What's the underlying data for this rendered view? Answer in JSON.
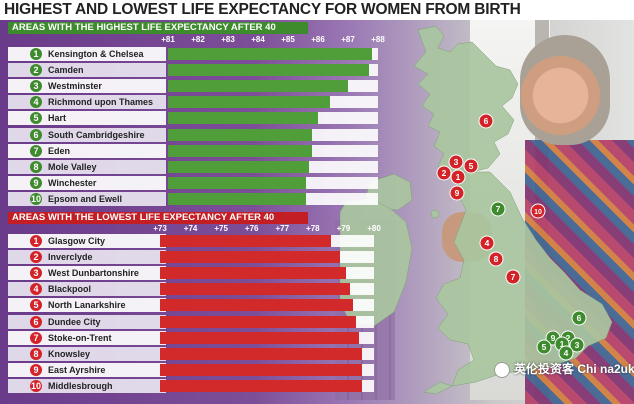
{
  "title": "HIGHEST AND LOWEST LIFE EXPECTANCY FOR WOMEN FROM BIRTH",
  "colors": {
    "green": "#3d8b2d",
    "red": "#d32328"
  },
  "watermark": "英伦投资客 Chi na2uk",
  "chart_data": [
    {
      "type": "bar",
      "orientation": "horizontal",
      "title": "AREAS WITH THE HIGHEST LIFE EXPECTANCY AFTER 40",
      "tick_labels": [
        "+81",
        "+82",
        "+83",
        "+84",
        "+85",
        "+86",
        "+87",
        "+88"
      ],
      "xlim": [
        81,
        88
      ],
      "ranks": [
        "1",
        "2",
        "3",
        "4",
        "5",
        "6",
        "7",
        "8",
        "9",
        "10"
      ],
      "categories": [
        "Kensington & Chelsea",
        "Camden",
        "Westminster",
        "Richmond upon Thames",
        "Hart",
        "South Cambridgeshire",
        "Eden",
        "Mole Valley",
        "Winchester",
        "Epsom and Ewell"
      ],
      "values": [
        87.8,
        87.7,
        87.0,
        86.4,
        86.0,
        85.8,
        85.8,
        85.7,
        85.6,
        85.6
      ],
      "color": "#3d8b2d"
    },
    {
      "type": "bar",
      "orientation": "horizontal",
      "title": "AREAS WITH THE LOWEST LIFE EXPECTANCY AFTER 40",
      "tick_labels": [
        "+73",
        "+74",
        "+75",
        "+76",
        "+77",
        "+78",
        "+79",
        "+80"
      ],
      "xlim": [
        73,
        80
      ],
      "ranks": [
        "1",
        "2",
        "3",
        "4",
        "5",
        "6",
        "7",
        "8",
        "9",
        "10"
      ],
      "categories": [
        "Glasgow City",
        "Inverclyde",
        "West Dunbartonshire",
        "Blackpool",
        "North Lanarkshire",
        "Dundee City",
        "Stoke-on-Trent",
        "Knowsley",
        "East Ayrshire",
        "Middlesbrough"
      ],
      "values": [
        78.6,
        78.9,
        79.1,
        79.2,
        79.3,
        79.4,
        79.5,
        79.6,
        79.6,
        79.6
      ],
      "color": "#d32328"
    }
  ],
  "map": {
    "markers": [
      {
        "label": "6",
        "color": "red"
      },
      {
        "label": "3",
        "color": "red"
      },
      {
        "label": "2",
        "color": "red"
      },
      {
        "label": "1",
        "color": "red"
      },
      {
        "label": "5",
        "color": "red"
      },
      {
        "label": "9",
        "color": "red"
      },
      {
        "label": "10",
        "color": "red"
      },
      {
        "label": "4",
        "color": "red"
      },
      {
        "label": "8",
        "color": "red"
      },
      {
        "label": "7",
        "color": "red"
      },
      {
        "label": "7",
        "color": "green"
      },
      {
        "label": "6",
        "color": "green"
      },
      {
        "label": "9",
        "color": "green"
      },
      {
        "label": "2",
        "color": "green"
      },
      {
        "label": "3",
        "color": "green"
      },
      {
        "label": "1",
        "color": "green"
      },
      {
        "label": "5",
        "color": "green"
      },
      {
        "label": "4",
        "color": "green"
      }
    ]
  }
}
